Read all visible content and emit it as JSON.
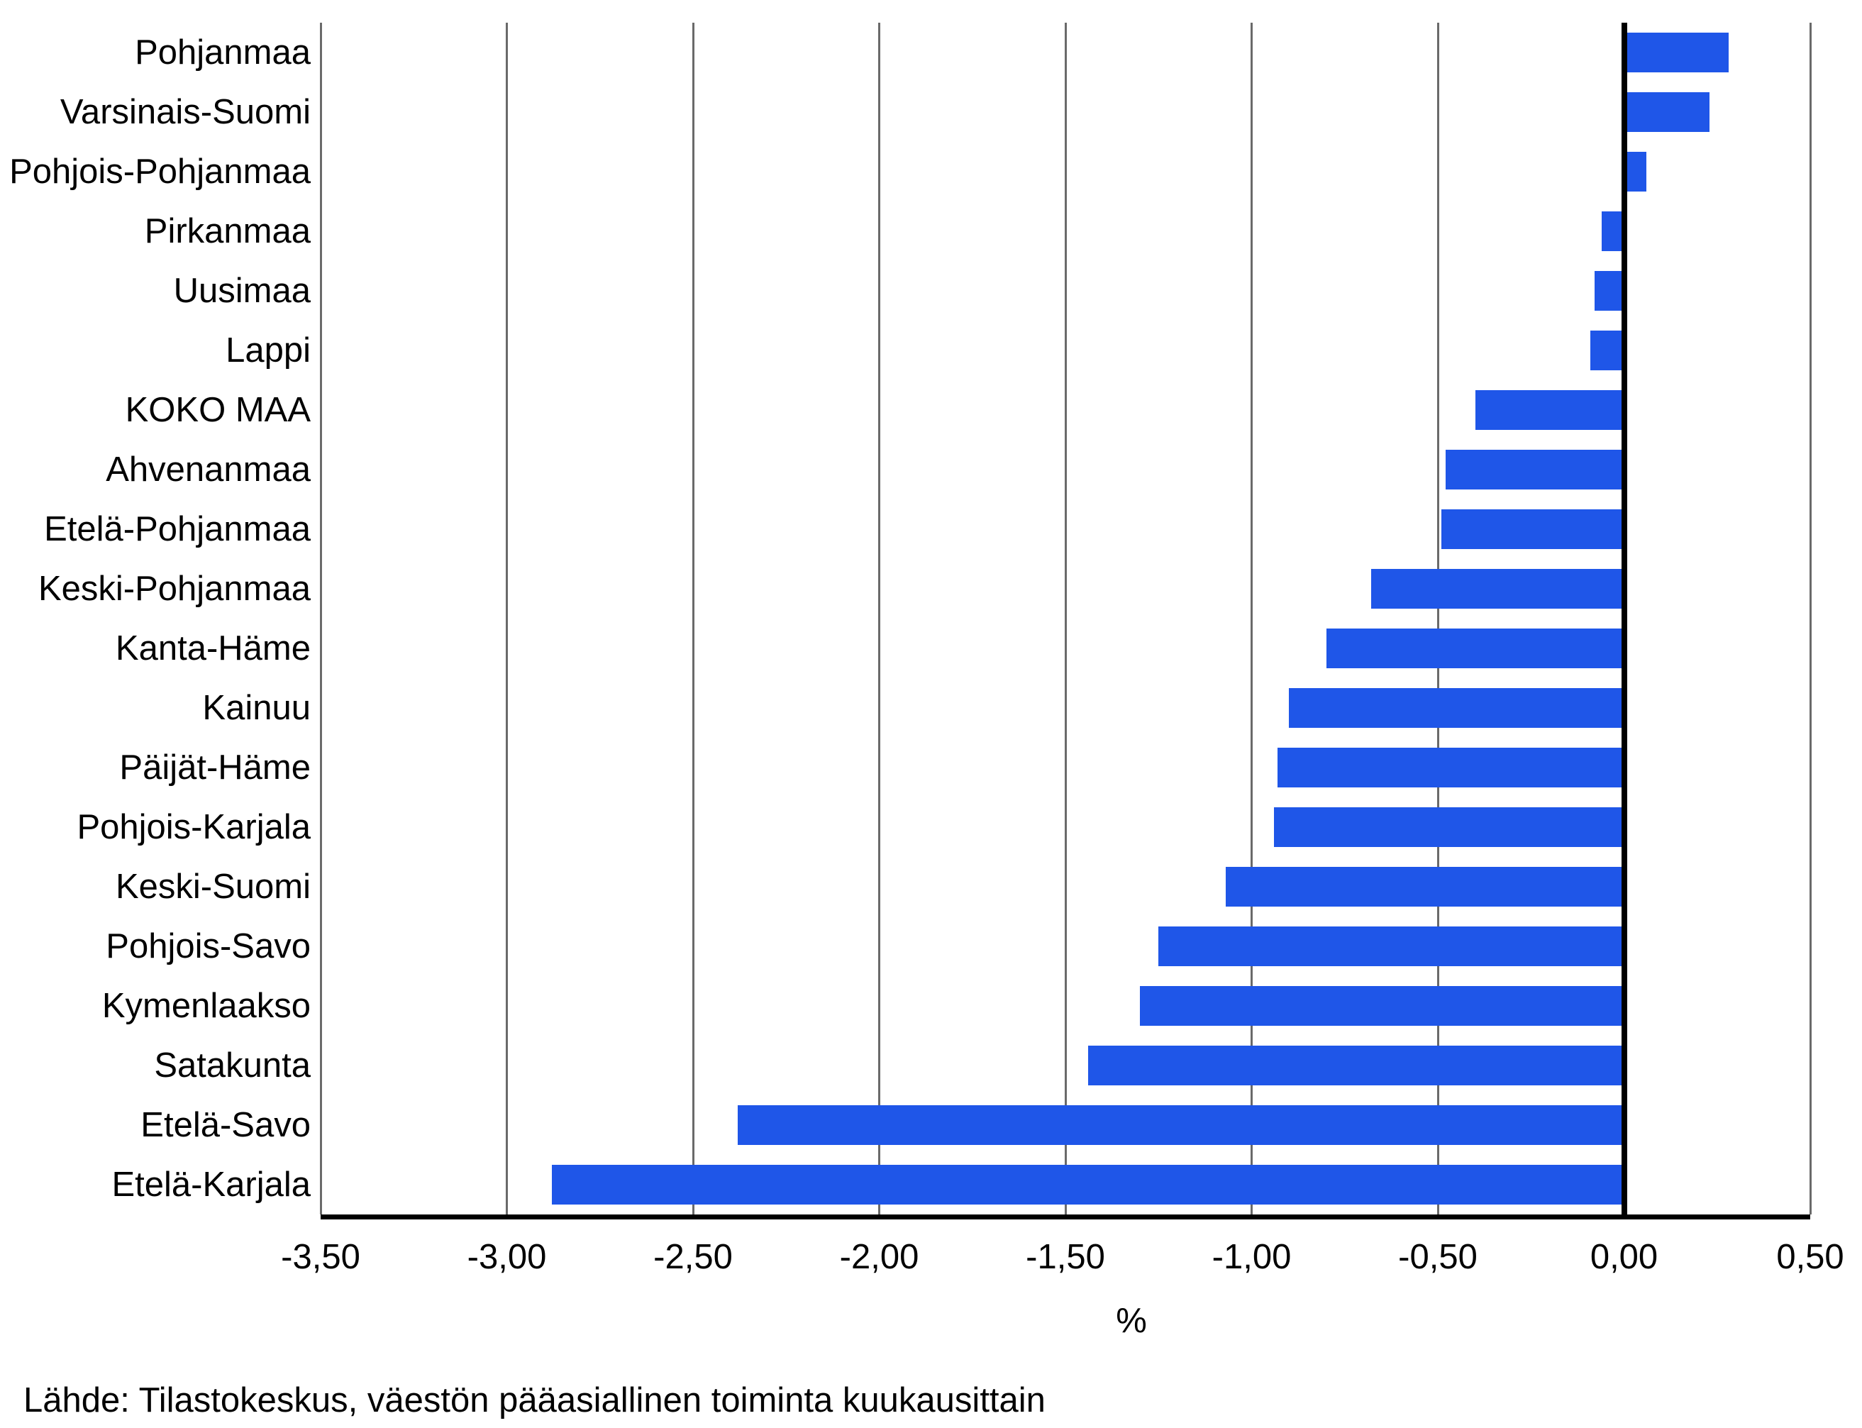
{
  "chart_data": {
    "type": "bar",
    "orientation": "horizontal",
    "title": "",
    "categories": [
      "Pohjanmaa",
      "Varsinais-Suomi",
      "Pohjois-Pohjanmaa",
      "Pirkanmaa",
      "Uusimaa",
      "Lappi",
      "KOKO MAA",
      "Ahvenanmaa",
      "Etelä-Pohjanmaa",
      "Keski-Pohjanmaa",
      "Kanta-Häme",
      "Kainuu",
      "Päijät-Häme",
      "Pohjois-Karjala",
      "Keski-Suomi",
      "Pohjois-Savo",
      "Kymenlaakso",
      "Satakunta",
      "Etelä-Savo",
      "Etelä-Karjala"
    ],
    "values": [
      0.28,
      0.23,
      0.06,
      -0.06,
      -0.08,
      -0.09,
      -0.4,
      -0.48,
      -0.49,
      -0.68,
      -0.8,
      -0.9,
      -0.93,
      -0.94,
      -1.07,
      -1.25,
      -1.3,
      -1.44,
      -2.38,
      -2.88
    ],
    "xlabel": "%",
    "xlim": [
      -3.5,
      0.5
    ],
    "x_ticks": [
      {
        "value": -3.5,
        "label": "-3,50"
      },
      {
        "value": -3.0,
        "label": "-3,00"
      },
      {
        "value": -2.5,
        "label": "-2,50"
      },
      {
        "value": -2.0,
        "label": "-2,00"
      },
      {
        "value": -1.5,
        "label": "-1,50"
      },
      {
        "value": -1.0,
        "label": "-1,00"
      },
      {
        "value": -0.5,
        "label": "-0,50"
      },
      {
        "value": 0.0,
        "label": "0,00"
      },
      {
        "value": 0.5,
        "label": "0,50"
      }
    ],
    "grid": "vertical-gridlines-on",
    "legend": "none",
    "zero_line": "thick-black",
    "bar_color": "#1f56e8"
  },
  "footer": {
    "source_label": "Lähde: Tilastokeskus, väestön pääasiallinen toiminta kuukausittain"
  },
  "colors": {
    "bar": "#1f56e8",
    "gridline": "#6a6a6a",
    "axis_line": "#000000",
    "zero_line": "#000000",
    "background": "#ffffff",
    "text": "#000000"
  }
}
